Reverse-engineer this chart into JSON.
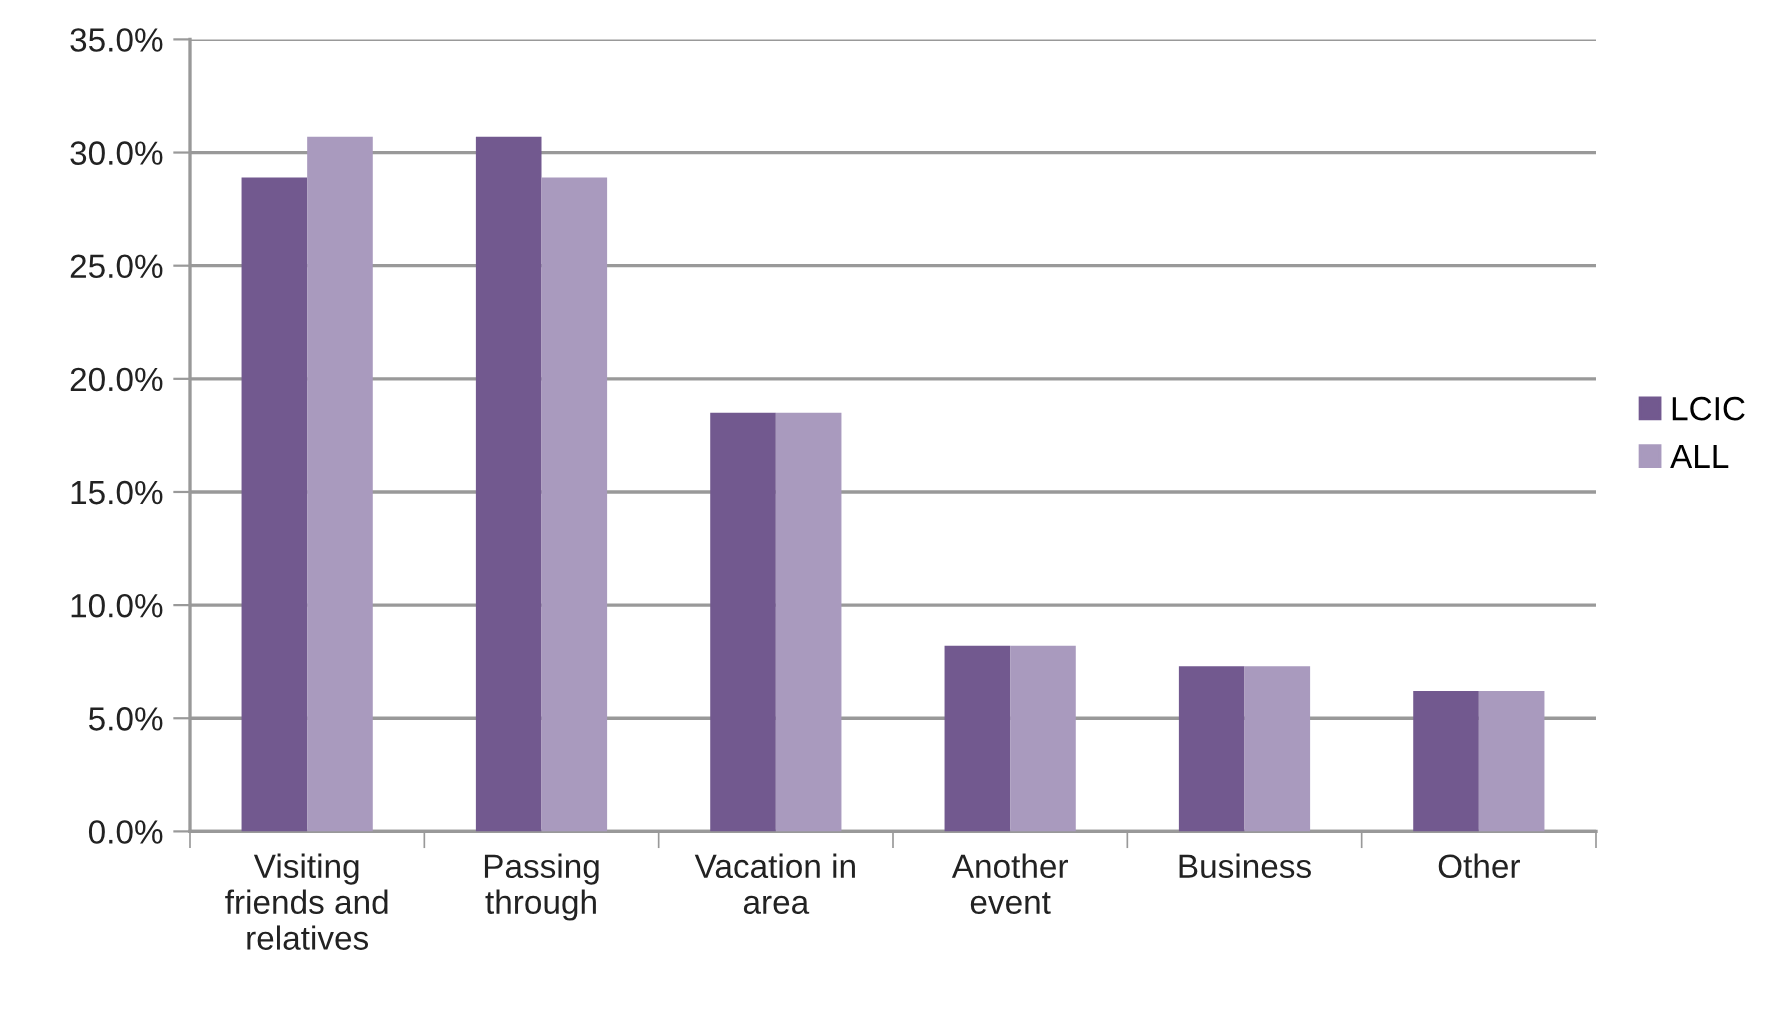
{
  "chart_data": {
    "type": "bar",
    "categories": [
      "Visiting\nfriends and\nrelatives",
      "Passing\nthrough",
      "Vacation in\narea",
      "Another\nevent",
      "Business",
      "Other"
    ],
    "series": [
      {
        "name": "LCIC",
        "color": "#72598f",
        "values": [
          28.9,
          30.7,
          18.5,
          8.2,
          7.3,
          6.2
        ]
      },
      {
        "name": "ALL",
        "color": "#a99abe",
        "values": [
          30.7,
          28.9,
          18.5,
          8.2,
          7.3,
          6.2
        ]
      }
    ],
    "ylim": [
      0,
      35
    ],
    "yticks": [
      {
        "value": 0,
        "label": "0.0%"
      },
      {
        "value": 5,
        "label": "5.0%"
      },
      {
        "value": 10,
        "label": "10.0%"
      },
      {
        "value": 15,
        "label": "15.0%"
      },
      {
        "value": 20,
        "label": "20.0%"
      },
      {
        "value": 25,
        "label": "25.0%"
      },
      {
        "value": 30,
        "label": "30.0%"
      },
      {
        "value": 35,
        "label": "35.0%"
      }
    ],
    "grid": "y",
    "legend": "right"
  }
}
